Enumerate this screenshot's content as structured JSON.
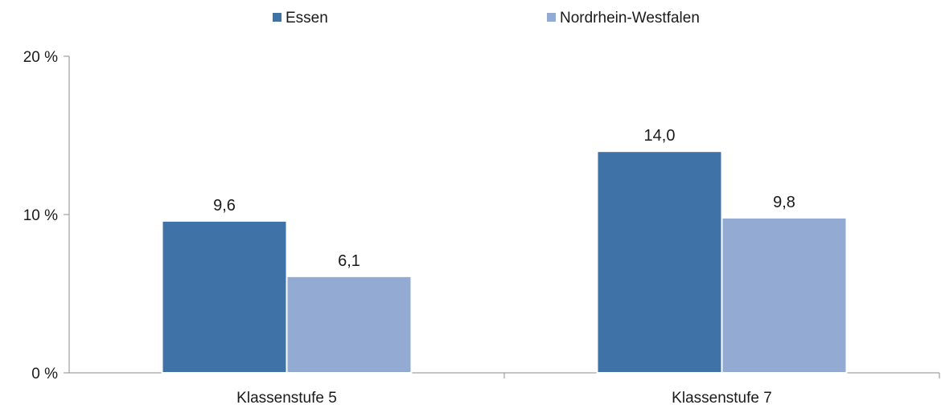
{
  "chart_data": {
    "type": "bar",
    "categories": [
      "Klassenstufe 5",
      "Klassenstufe 7"
    ],
    "series": [
      {
        "name": "Essen",
        "values": [
          9.6,
          14.0
        ],
        "labels": [
          "9,6",
          "14,0"
        ],
        "color": "#3f72a6"
      },
      {
        "name": "Nordrhein-Westfalen",
        "values": [
          6.1,
          9.8
        ],
        "labels": [
          "6,1",
          "9,8"
        ],
        "color": "#93abd2"
      }
    ],
    "ylim": [
      0,
      20
    ],
    "yticks": [
      0,
      10,
      20
    ],
    "ytick_labels": [
      "0 %",
      "10 %",
      "20 %"
    ],
    "legend_position": "top-center",
    "grid": false
  }
}
